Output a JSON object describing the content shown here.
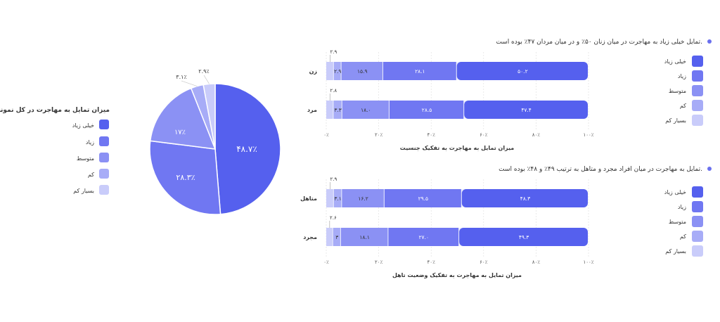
{
  "colors": {
    "khayli_ziad": "#5560ee",
    "ziad": "#7077f2",
    "motevaset": "#8b91f4",
    "kam": "#a7acf7",
    "besyar_kam": "#c9ccfa",
    "bullet": "#6a70ee",
    "text": "#333333"
  },
  "legend_labels": [
    "خیلی زیاد",
    "زیاد",
    "متوسط",
    "کم",
    "بسیار کم"
  ],
  "chart_data": [
    {
      "type": "pie",
      "title": "میزان تمایل به مهاجرت در کل نمونه",
      "labels": [
        "خیلی زیاد",
        "زیاد",
        "متوسط",
        "کم",
        "بسیار کم"
      ],
      "values": [
        48.7,
        28.3,
        17,
        3.1,
        2.9
      ],
      "value_labels": [
        "۴۸.۷٪",
        "۲۸.۳٪",
        "۱۷٪",
        "۳.۱٪",
        "۲.۹٪"
      ],
      "legend": "left"
    },
    {
      "type": "bar",
      "orientation": "horizontal",
      "stacked": true,
      "note": "تمایل خیلی زیاد به مهاجرت در میان زنان ۵۰٪ و در میان مردان ۴۷٪ بوده است.",
      "title": "میزان تمایل به مهاجرت به تفکیک جنسیت",
      "categories": [
        "زن",
        "مرد"
      ],
      "series": [
        {
          "name": "خیلی زیاد",
          "values": [
            50.2,
            47.4
          ],
          "labels": [
            "۵۰.۲",
            "۴۷.۴"
          ]
        },
        {
          "name": "زیاد",
          "values": [
            28.1,
            28.5
          ],
          "labels": [
            "۲۸.۱",
            "۲۸.۵"
          ]
        },
        {
          "name": "متوسط",
          "values": [
            15.9,
            18.0
          ],
          "labels": [
            "۱۵.۹",
            "۱۸.۰"
          ]
        },
        {
          "name": "کم",
          "values": [
            2.9,
            3.3
          ],
          "labels": [
            "۲.۹",
            "۳.۳"
          ]
        },
        {
          "name": "بسیار کم",
          "values": [
            2.9,
            2.8
          ],
          "labels": [
            "۲.۹",
            "۲.۸"
          ]
        }
      ],
      "xlim": [
        0,
        100
      ],
      "x_ticks": [
        "۰٪",
        "۲۰٪",
        "۴۰٪",
        "۶۰٪",
        "۸۰٪",
        "۱۰۰٪"
      ],
      "legend": "right"
    },
    {
      "type": "bar",
      "orientation": "horizontal",
      "stacked": true,
      "note": "تمایل به مهاجرت در میان افراد مجرد و متاهل به ترتیب ۴۹٪ و ۴۸٪ بوده است.",
      "title": "میزان تمایل به مهاجرت به تفکیک وضعیت تاهل",
      "categories": [
        "متاهل",
        "مجرد"
      ],
      "series": [
        {
          "name": "خیلی زیاد",
          "values": [
            48.3,
            49.3
          ],
          "labels": [
            "۴۸.۳",
            "۴۹.۳"
          ]
        },
        {
          "name": "زیاد",
          "values": [
            29.5,
            27.0
          ],
          "labels": [
            "۲۹.۵",
            "۲۷.۰"
          ]
        },
        {
          "name": "متوسط",
          "values": [
            16.2,
            18.1
          ],
          "labels": [
            "۱۶.۲",
            "۱۸.۱"
          ]
        },
        {
          "name": "کم",
          "values": [
            3.1,
            3
          ],
          "labels": [
            "۳.۱",
            "۳"
          ]
        },
        {
          "name": "بسیار کم",
          "values": [
            2.9,
            2.6
          ],
          "labels": [
            "۲.۹",
            "۲.۶"
          ]
        }
      ],
      "xlim": [
        0,
        100
      ],
      "x_ticks": [
        "۰٪",
        "۲۰٪",
        "۴۰٪",
        "۶۰٪",
        "۸۰٪",
        "۱۰۰٪"
      ],
      "legend": "right"
    }
  ]
}
